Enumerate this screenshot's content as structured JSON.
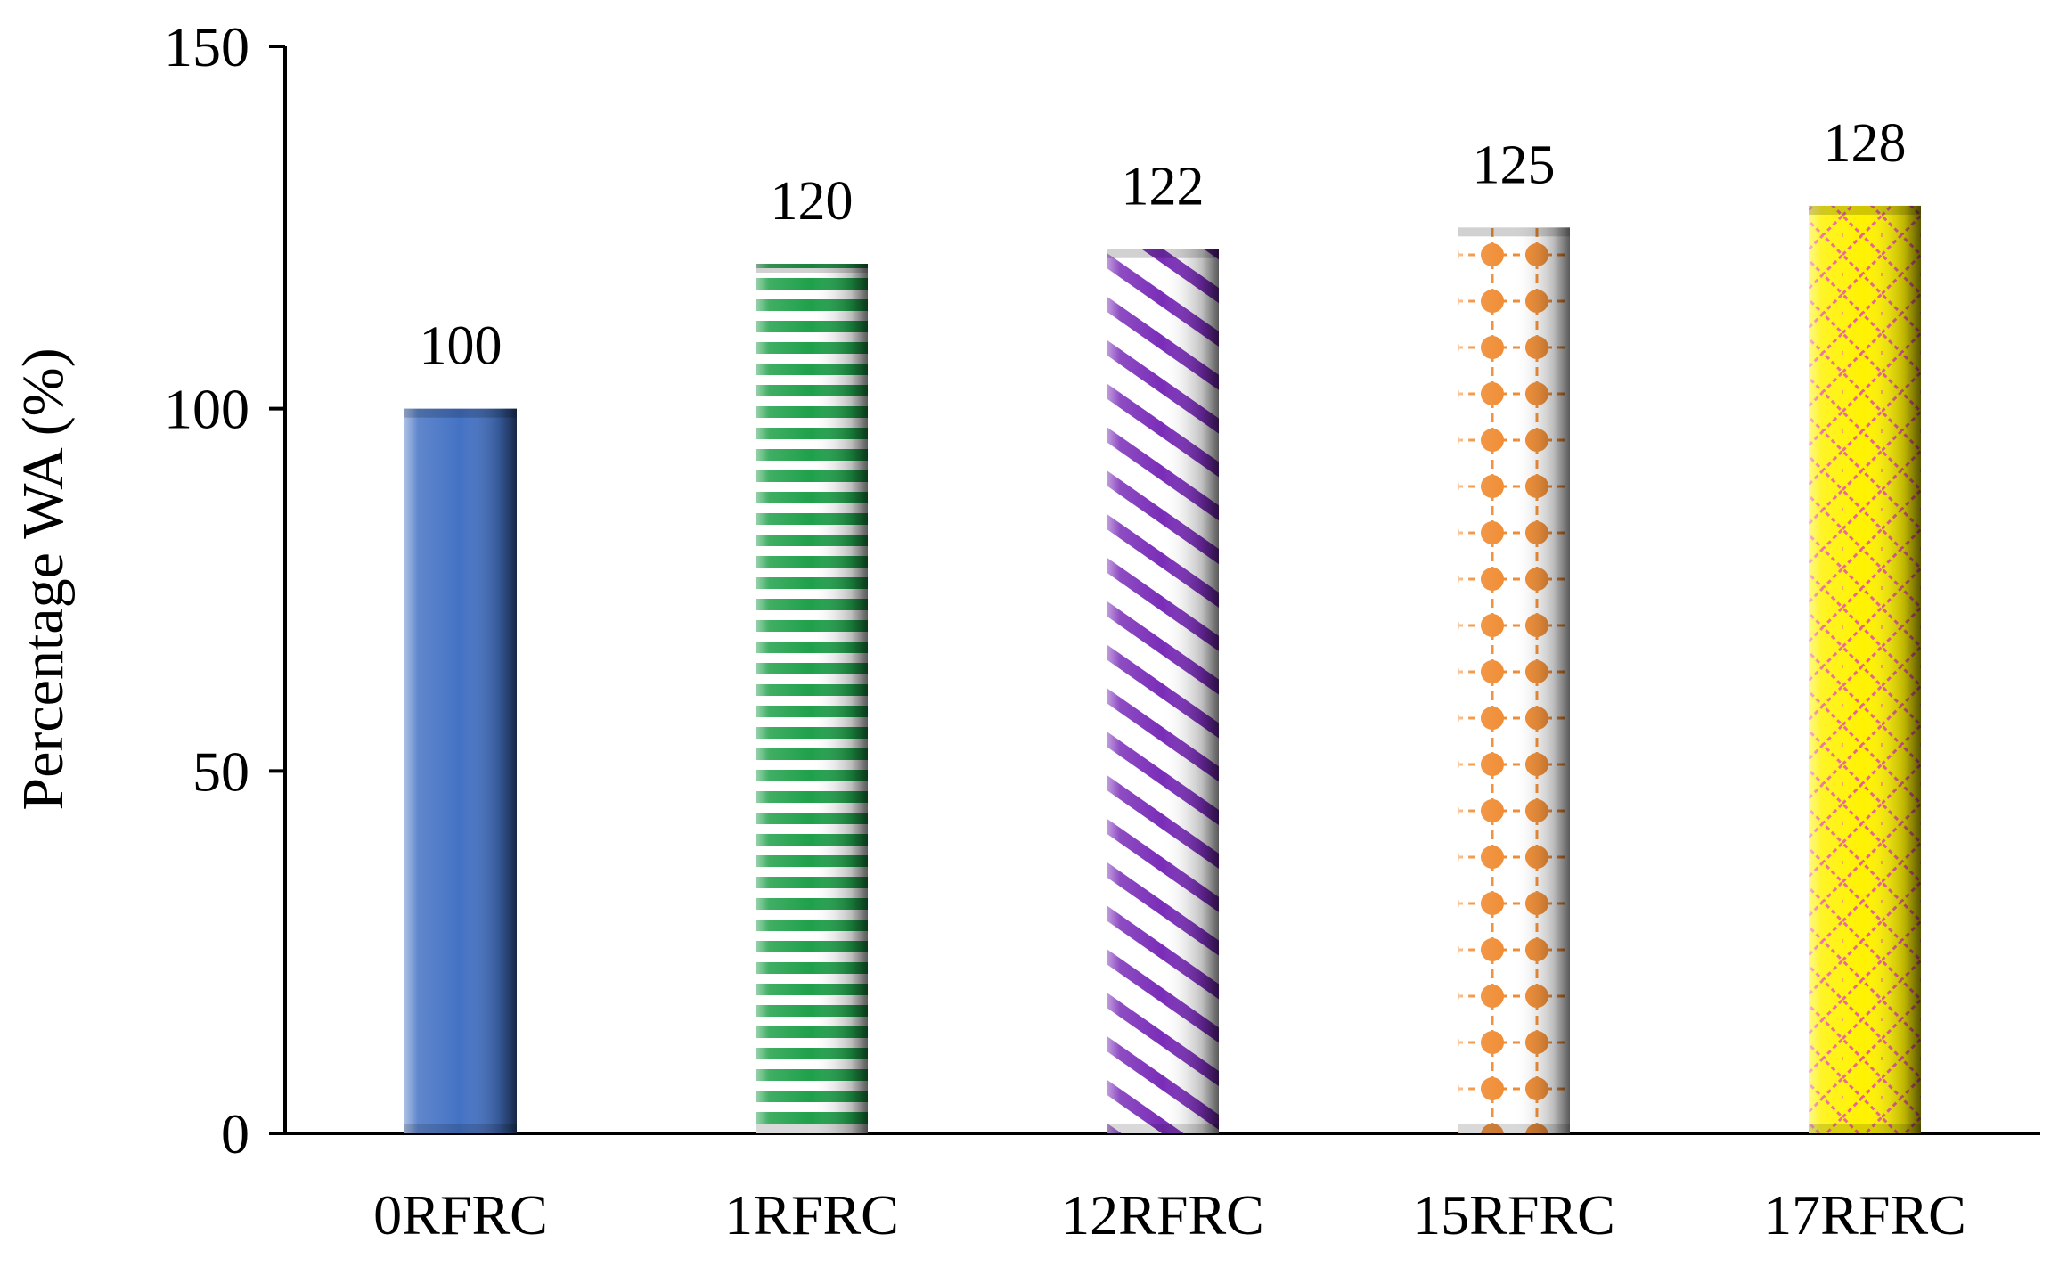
{
  "chart_data": {
    "type": "bar",
    "title": "",
    "xlabel": "",
    "ylabel": "Percentage  WA (%)",
    "ylim": [
      0,
      150
    ],
    "yticks": [
      0,
      50,
      100,
      150
    ],
    "grid": false,
    "legend": "none",
    "categories": [
      "0RFRC",
      "1RFRC",
      "12RFRC",
      "15RFRC",
      "17RFRC"
    ],
    "values": [
      100,
      120,
      122,
      125,
      128
    ],
    "data_labels": [
      "100",
      "120",
      "122",
      "125",
      "128"
    ],
    "bar_styles": [
      {
        "pattern": "solid",
        "color": "#4472C4",
        "background": "#4472C4"
      },
      {
        "pattern": "horizontal-stripes",
        "color": "#1FA04A",
        "background": "#ffffff"
      },
      {
        "pattern": "diagonal-stripes",
        "color": "#7A2DB8",
        "background": "#ffffff"
      },
      {
        "pattern": "dots",
        "color": "#F08A30",
        "background": "#ffffff"
      },
      {
        "pattern": "diamond-lattice",
        "color": "#E8608C",
        "background": "#FFF200"
      }
    ]
  }
}
